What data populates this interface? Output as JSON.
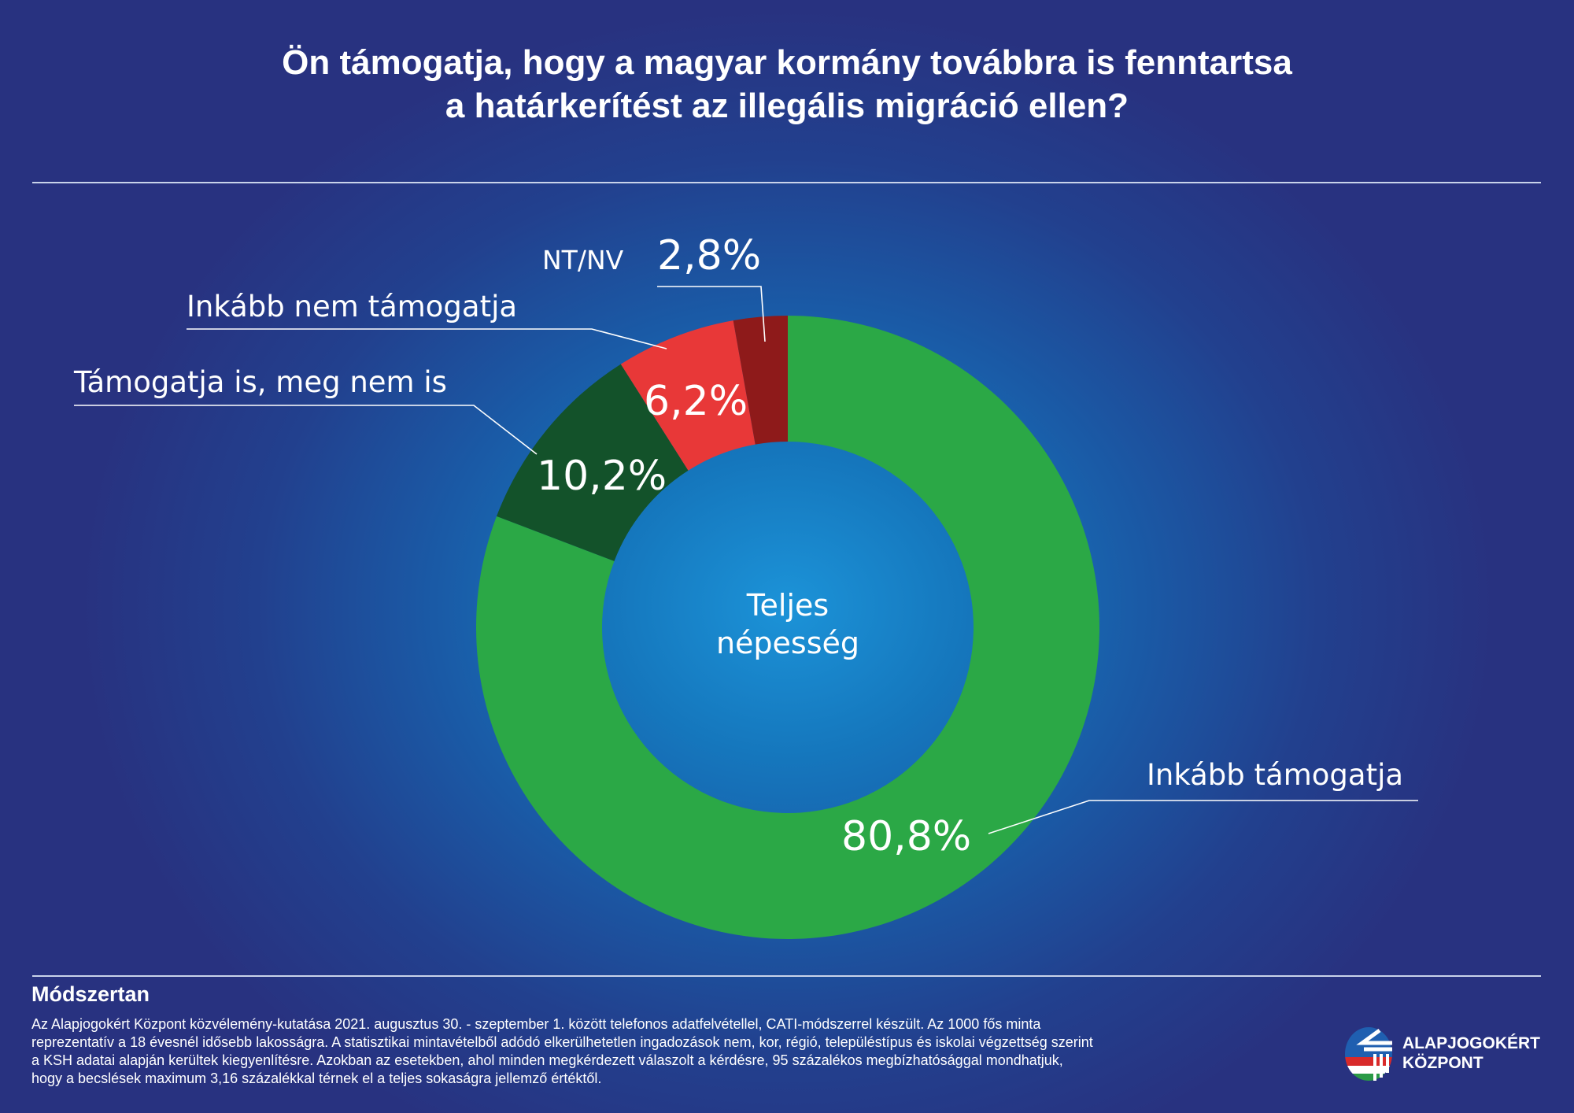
{
  "title": {
    "line1": "Ön támogatja, hogy a magyar kormány továbbra is fenntartsa",
    "line2": "a határkerítést az illegális migráció ellen?"
  },
  "chart_data": {
    "type": "pie",
    "variant": "donut",
    "center_label": [
      "Teljes",
      "népesség"
    ],
    "slices": [
      {
        "label": "Inkább támogatja",
        "value": 80.8,
        "value_label": "80,8%",
        "color": "#2ba846"
      },
      {
        "label": "Támogatja is, meg nem is",
        "value": 10.2,
        "value_label": "10,2%",
        "color": "#13522a"
      },
      {
        "label": "Inkább nem támogatja",
        "value": 6.2,
        "value_label": "6,2%",
        "color": "#e83838"
      },
      {
        "label": "NT/NV",
        "value": 2.8,
        "value_label": "2,8%",
        "color": "#8e1a1a"
      }
    ]
  },
  "methodology": {
    "heading": "Módszertan",
    "lines": [
      "Az Alapjogokért Központ közvélemény-kutatása 2021. augusztus 30. - szeptember 1. között telefonos adatfelvétellel, CATI-módszerrel készült. Az 1000 fős minta",
      "reprezentatív a 18 évesnél idősebb lakosságra. A statisztikai mintavételből adódó elkerülhetetlen ingadozások nem, kor, régió, településtípus és iskolai végzettség szerint",
      "a KSH adatai alapján kerültek kiegyenlítésre. Azokban az esetekben, ahol minden megkérdezett válaszolt a kérdésre, 95 százalékos megbízhatósággal mondhatjuk,",
      "hogy a becslések maximum 3,16 százalékkal térnek el a teljes sokaságra jellemző értéktől."
    ]
  },
  "logo": {
    "line1": "ALAPJOGOKÉRT",
    "line2": "KÖZPONT"
  }
}
